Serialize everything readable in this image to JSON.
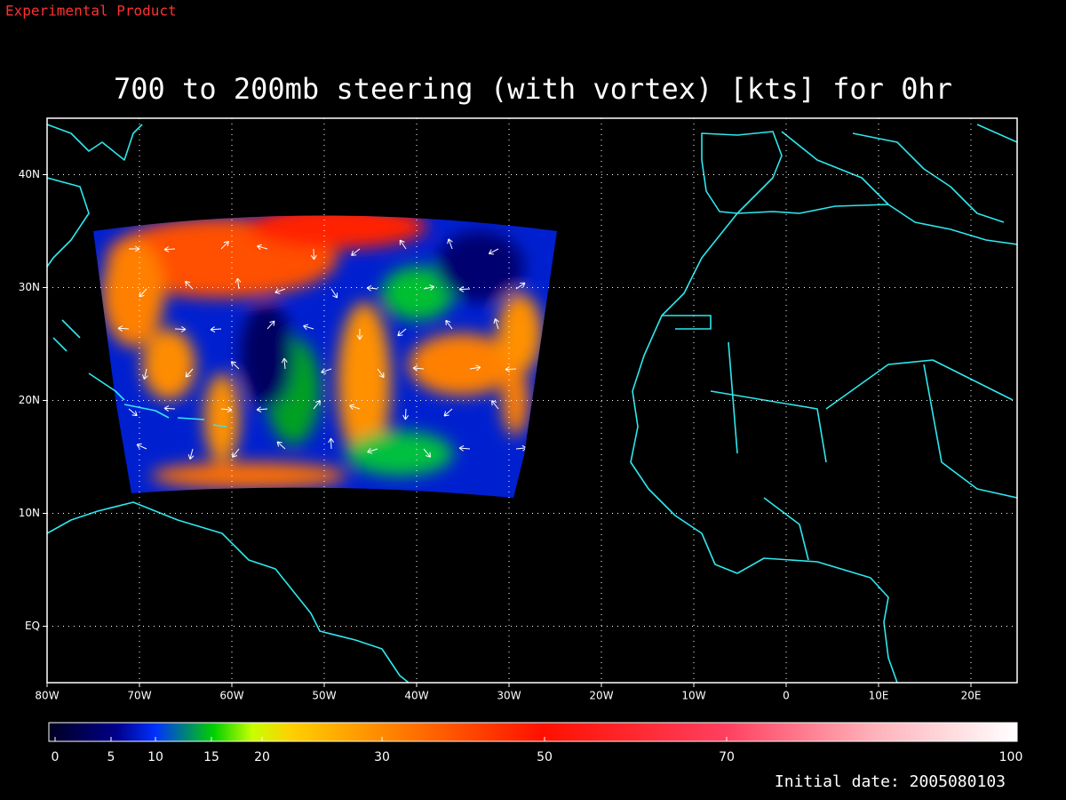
{
  "header": {
    "label": "Experimental Product"
  },
  "map": {
    "title": "700 to 200mb steering (with vortex) [kts] for 0hr",
    "xlim": [
      -80,
      25
    ],
    "ylim": [
      -5,
      45
    ],
    "xticks": [
      {
        "value": -80,
        "label": "80W"
      },
      {
        "value": -70,
        "label": "70W"
      },
      {
        "value": -60,
        "label": "60W"
      },
      {
        "value": -50,
        "label": "50W"
      },
      {
        "value": -40,
        "label": "40W"
      },
      {
        "value": -30,
        "label": "30W"
      },
      {
        "value": -20,
        "label": "20W"
      },
      {
        "value": -10,
        "label": "10W"
      },
      0,
      {
        "value": 10,
        "label": "10E"
      },
      {
        "value": 20,
        "label": "20E"
      }
    ],
    "yticks": [
      {
        "value": 0,
        "label": "EQ"
      },
      {
        "value": 10,
        "label": "10N"
      },
      {
        "value": 20,
        "label": "20N"
      },
      {
        "value": 30,
        "label": "30N"
      },
      {
        "value": 40,
        "label": "40N"
      }
    ],
    "grid": true
  },
  "colorbar": {
    "ticks": [
      0,
      5,
      10,
      15,
      20,
      30,
      50,
      70,
      100
    ]
  },
  "footer": {
    "initial_date": "Initial date: 2005080103"
  }
}
